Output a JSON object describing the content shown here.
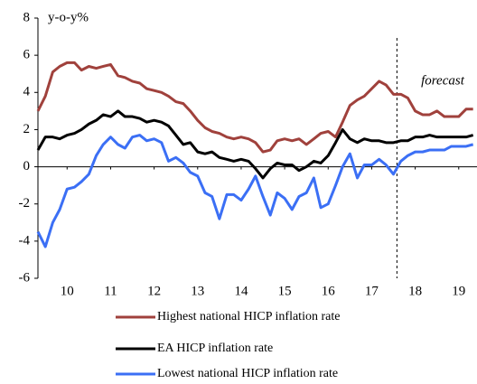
{
  "chart_data": {
    "type": "line",
    "y_label": "y-o-y%",
    "annotation": "forecast",
    "forecast_start": 2018.08,
    "x": [
      2009.83,
      2010.0,
      2010.17,
      2010.33,
      2010.5,
      2010.67,
      2010.83,
      2011.0,
      2011.17,
      2011.33,
      2011.5,
      2011.67,
      2011.83,
      2012.0,
      2012.17,
      2012.33,
      2012.5,
      2012.67,
      2012.83,
      2013.0,
      2013.17,
      2013.33,
      2013.5,
      2013.67,
      2013.83,
      2014.0,
      2014.17,
      2014.33,
      2014.5,
      2014.67,
      2014.83,
      2015.0,
      2015.17,
      2015.33,
      2015.5,
      2015.67,
      2015.83,
      2016.0,
      2016.17,
      2016.33,
      2016.5,
      2016.67,
      2016.83,
      2017.0,
      2017.17,
      2017.33,
      2017.5,
      2017.67,
      2017.83,
      2018.0,
      2018.17,
      2018.33,
      2018.5,
      2018.67,
      2018.83,
      2019.0,
      2019.17,
      2019.33,
      2019.5,
      2019.67,
      2019.83
    ],
    "series": [
      {
        "name": "Highest national HICP inflation rate",
        "color": "#a0413c",
        "values": [
          3.0,
          3.8,
          5.1,
          5.4,
          5.6,
          5.6,
          5.2,
          5.4,
          5.3,
          5.4,
          5.5,
          4.9,
          4.8,
          4.6,
          4.5,
          4.2,
          4.1,
          4.0,
          3.8,
          3.5,
          3.4,
          3.0,
          2.5,
          2.1,
          1.9,
          1.8,
          1.6,
          1.5,
          1.6,
          1.5,
          1.3,
          0.8,
          0.9,
          1.4,
          1.5,
          1.4,
          1.5,
          1.2,
          1.5,
          1.8,
          1.9,
          1.6,
          2.4,
          3.3,
          3.6,
          3.8,
          4.2,
          4.6,
          4.4,
          3.9,
          3.9,
          3.7,
          3.0,
          2.8,
          2.8,
          3.0,
          2.7,
          2.7,
          2.7,
          3.1,
          3.1
        ]
      },
      {
        "name": "EA HICP inflation rate",
        "color": "#000000",
        "values": [
          0.9,
          1.6,
          1.6,
          1.5,
          1.7,
          1.8,
          2.0,
          2.3,
          2.5,
          2.8,
          2.7,
          3.0,
          2.7,
          2.7,
          2.6,
          2.4,
          2.5,
          2.4,
          2.2,
          1.7,
          1.2,
          1.3,
          0.8,
          0.7,
          0.8,
          0.5,
          0.4,
          0.3,
          0.4,
          0.3,
          -0.1,
          -0.6,
          -0.1,
          0.2,
          0.1,
          0.1,
          -0.2,
          0.0,
          0.3,
          0.2,
          0.6,
          1.3,
          2.0,
          1.5,
          1.3,
          1.5,
          1.4,
          1.4,
          1.3,
          1.3,
          1.4,
          1.4,
          1.6,
          1.6,
          1.7,
          1.6,
          1.6,
          1.6,
          1.6,
          1.6,
          1.7
        ]
      },
      {
        "name": "Lowest national HICP inflation rate",
        "color": "#3b6ff5",
        "values": [
          -3.5,
          -4.3,
          -3.0,
          -2.3,
          -1.2,
          -1.1,
          -0.8,
          -0.4,
          0.6,
          1.2,
          1.6,
          1.2,
          1.0,
          1.6,
          1.7,
          1.4,
          1.5,
          1.3,
          0.3,
          0.5,
          0.2,
          -0.3,
          -0.5,
          -1.4,
          -1.6,
          -2.8,
          -1.5,
          -1.5,
          -1.8,
          -1.2,
          -0.5,
          -1.6,
          -2.6,
          -1.4,
          -1.7,
          -2.3,
          -1.6,
          -1.4,
          -0.6,
          -2.2,
          -2.0,
          -1.0,
          0.0,
          0.7,
          -0.6,
          0.1,
          0.1,
          0.4,
          0.1,
          -0.4,
          0.3,
          0.6,
          0.8,
          0.8,
          0.9,
          0.9,
          0.9,
          1.1,
          1.1,
          1.1,
          1.2
        ]
      }
    ],
    "xlim": [
      2009.83,
      2019.92
    ],
    "xticks": [
      {
        "value": 2010.5,
        "label": "10"
      },
      {
        "value": 2011.5,
        "label": "11"
      },
      {
        "value": 2012.5,
        "label": "12"
      },
      {
        "value": 2013.5,
        "label": "13"
      },
      {
        "value": 2014.5,
        "label": "14"
      },
      {
        "value": 2015.5,
        "label": "15"
      },
      {
        "value": 2016.5,
        "label": "16"
      },
      {
        "value": 2017.5,
        "label": "17"
      },
      {
        "value": 2018.5,
        "label": "18"
      },
      {
        "value": 2019.5,
        "label": "19"
      }
    ],
    "ylim": [
      -6,
      8
    ],
    "yticks": [
      -6,
      -4,
      -2,
      0,
      2,
      4,
      6,
      8
    ],
    "legend": "bottom"
  }
}
